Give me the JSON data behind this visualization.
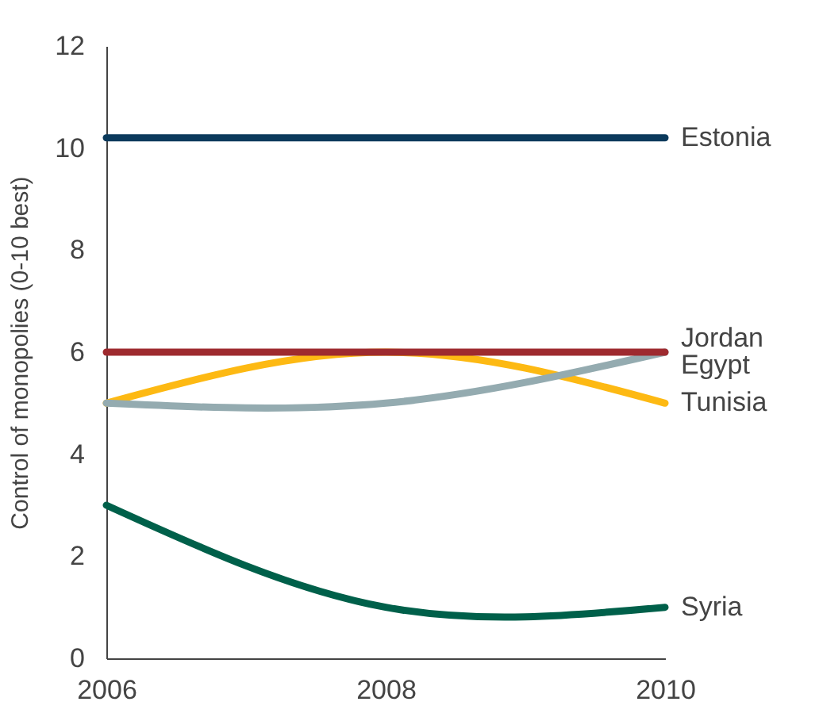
{
  "chart_data": {
    "type": "line",
    "ylabel": "Control of monopolies (0-10 best)",
    "x": [
      2006,
      2008,
      2010
    ],
    "xlim": [
      2006,
      2010
    ],
    "xticks": [
      2006,
      2008,
      2010
    ],
    "ylim": [
      0,
      12
    ],
    "yticks": [
      0,
      2,
      4,
      6,
      8,
      10,
      12
    ],
    "grid": false,
    "legend": false,
    "marker": "none",
    "line_style": "solid",
    "series": [
      {
        "name": "Estonia",
        "color": "#0b3a5c",
        "values": [
          10.2,
          10.2,
          10.2
        ]
      },
      {
        "name": "Jordan",
        "color": "#9e2a2f",
        "values": [
          6,
          6,
          6
        ]
      },
      {
        "name": "Egypt",
        "color": "#94abb0",
        "values": [
          5,
          5,
          6
        ]
      },
      {
        "name": "Tunisia",
        "color": "#fdb913",
        "values": [
          5,
          6,
          5
        ]
      },
      {
        "name": "Syria",
        "color": "#00604a",
        "values": [
          3,
          1,
          1
        ]
      }
    ]
  }
}
